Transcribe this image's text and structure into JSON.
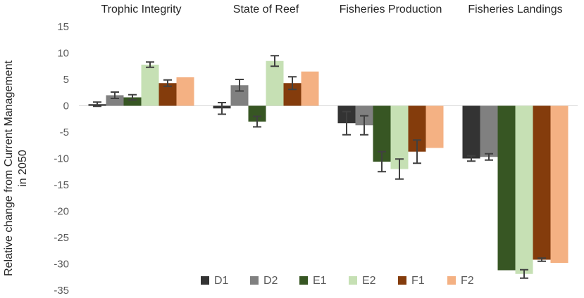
{
  "chart_data": {
    "type": "bar",
    "title": "",
    "xlabel": "",
    "ylabel_lines": [
      "Relative change from Current Management",
      "in 2050"
    ],
    "ylim": [
      -35,
      15
    ],
    "yticks": [
      15,
      10,
      5,
      0,
      -5,
      -10,
      -15,
      -20,
      -25,
      -30,
      -35
    ],
    "grid": false,
    "legend_position": "bottom",
    "categories": [
      "Trophic Integrity",
      "State of Reef",
      "Fisheries Production",
      "Fisheries Landings"
    ],
    "series": [
      {
        "name": "D1",
        "color": "#333333",
        "values": [
          0.3,
          -0.5,
          -3.3,
          -10.0
        ],
        "errors": [
          0.4,
          1.1,
          2.2,
          0.5
        ]
      },
      {
        "name": "D2",
        "color": "#808080",
        "values": [
          2.0,
          3.9,
          -3.7,
          -9.7
        ],
        "errors": [
          0.6,
          1.1,
          1.8,
          0.6
        ]
      },
      {
        "name": "E1",
        "color": "#375623",
        "values": [
          1.6,
          -3.0,
          -10.6,
          -31.2
        ],
        "errors": [
          0.5,
          1.0,
          1.9,
          0.0
        ]
      },
      {
        "name": "E2",
        "color": "#c6e0b4",
        "values": [
          7.8,
          8.5,
          -12.0,
          -31.9
        ],
        "errors": [
          0.5,
          1.0,
          1.9,
          0.8
        ]
      },
      {
        "name": "F1",
        "color": "#843c0c",
        "values": [
          4.3,
          4.3,
          -8.7,
          -29.2
        ],
        "errors": [
          0.6,
          1.2,
          2.2,
          0.3
        ]
      },
      {
        "name": "F2",
        "color": "#f4b183",
        "values": [
          5.4,
          6.5,
          -8.0,
          -29.8
        ],
        "errors": [
          0,
          0,
          0,
          0
        ]
      }
    ]
  }
}
